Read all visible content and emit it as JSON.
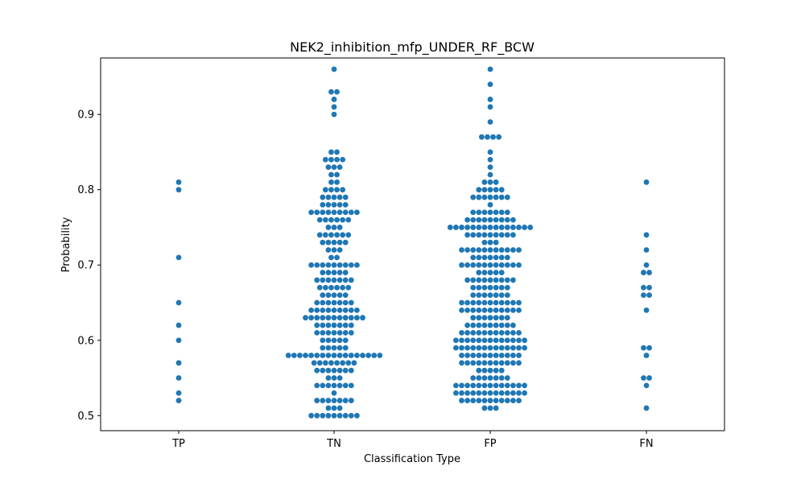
{
  "chart_data": {
    "type": "swarm",
    "title": "NEK2_inhibition_mfp_UNDER_RF_BCW",
    "xlabel": "Classification Type",
    "ylabel": "Probability",
    "categories": [
      "TP",
      "TN",
      "FP",
      "FN"
    ],
    "ylim": [
      0.48,
      0.975
    ],
    "yticks": [
      0.5,
      0.6,
      0.7,
      0.8,
      0.9
    ],
    "ytick_labels": [
      "0.5",
      "0.6",
      "0.7",
      "0.8",
      "0.9"
    ],
    "grid": false,
    "color": "#1f77b4",
    "values": {
      "TP": [
        0.52,
        0.53,
        0.55,
        0.57,
        0.6,
        0.62,
        0.65,
        0.71,
        0.8,
        0.81
      ],
      "FN": [
        0.51,
        0.54,
        0.55,
        0.55,
        0.58,
        0.59,
        0.59,
        0.64,
        0.66,
        0.66,
        0.67,
        0.67,
        0.69,
        0.69,
        0.7,
        0.72,
        0.74,
        0.81
      ],
      "TN": [],
      "FP": []
    },
    "value_counts": {
      "TN": {
        "0.5": 9,
        "0.51": 3,
        "0.52": 7,
        "0.53": 1,
        "0.54": 7,
        "0.55": 3,
        "0.56": 7,
        "0.57": 8,
        "0.58": 17,
        "0.59": 5,
        "0.6": 5,
        "0.61": 7,
        "0.62": 7,
        "0.63": 11,
        "0.64": 9,
        "0.65": 7,
        "0.66": 5,
        "0.67": 6,
        "0.68": 7,
        "0.69": 5,
        "0.7": 9,
        "0.71": 2,
        "0.72": 3,
        "0.73": 5,
        "0.74": 6,
        "0.75": 3,
        "0.76": 6,
        "0.77": 9,
        "0.78": 5,
        "0.79": 5,
        "0.8": 4,
        "0.81": 2,
        "0.82": 2,
        "0.83": 3,
        "0.84": 4,
        "0.85": 2,
        "0.9": 1,
        "0.91": 1,
        "0.92": 1,
        "0.93": 2,
        "0.96": 1
      },
      "FP": {
        "0.51": 3,
        "0.52": 11,
        "0.53": 13,
        "0.54": 13,
        "0.55": 7,
        "0.56": 5,
        "0.57": 11,
        "0.58": 11,
        "0.59": 13,
        "0.6": 13,
        "0.61": 11,
        "0.62": 9,
        "0.63": 7,
        "0.64": 11,
        "0.65": 11,
        "0.66": 7,
        "0.67": 7,
        "0.68": 9,
        "0.69": 5,
        "0.7": 11,
        "0.71": 7,
        "0.72": 11,
        "0.73": 3,
        "0.74": 9,
        "0.75": 15,
        "0.76": 9,
        "0.77": 7,
        "0.78": 1,
        "0.79": 7,
        "0.8": 5,
        "0.81": 3,
        "0.82": 1,
        "0.83": 1,
        "0.84": 1,
        "0.85": 1,
        "0.87": 4,
        "0.89": 1,
        "0.91": 1,
        "0.92": 1,
        "0.94": 1,
        "0.96": 1
      }
    }
  }
}
